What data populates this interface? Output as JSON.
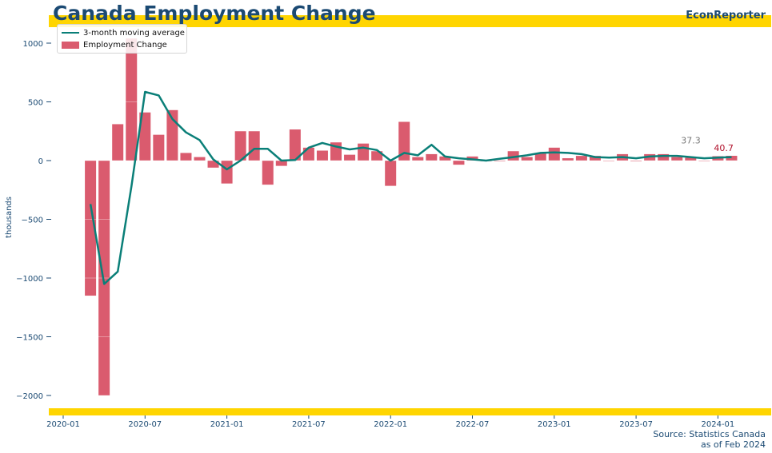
{
  "header": {
    "title": "Canada Employment Change",
    "brand": "EconReporter"
  },
  "footer": {
    "source_line1": "Source: Statistics Canada",
    "source_line2": "as of Feb 2024"
  },
  "colors": {
    "bar": "#da5b6e",
    "line": "#0a7f78",
    "band": "#ffd500",
    "axis_text": "#1b4a73",
    "last_label": "#b0102a",
    "prev_label": "#777777"
  },
  "chart_data": {
    "type": "bar",
    "title": "Canada Employment Change",
    "xlabel": "",
    "ylabel": "thousands",
    "ylim": [
      -2120,
      1120
    ],
    "yticks": [
      1000,
      500,
      0,
      -500,
      -1000,
      -1500,
      -2000
    ],
    "ytick_labels": [
      "1000",
      "500",
      "0",
      "−500",
      "−1000",
      "−1500",
      "−2000"
    ],
    "xtick_labels": [
      "2020-01",
      "2020-07",
      "2021-01",
      "2021-07",
      "2022-01",
      "2022-07",
      "2023-01",
      "2023-07",
      "2024-01"
    ],
    "xtick_month_index": [
      0,
      6,
      12,
      18,
      24,
      30,
      36,
      42,
      48
    ],
    "legend": [
      "3-month moving average",
      "Employment Change"
    ],
    "legend_position": "top-left",
    "start_month": "2020-03",
    "series": [
      {
        "name": "Employment Change",
        "type": "bar",
        "values": [
          -1150,
          -2000,
          310,
          1040,
          410,
          220,
          430,
          65,
          30,
          -60,
          -195,
          250,
          250,
          -205,
          -45,
          265,
          110,
          85,
          155,
          50,
          145,
          80,
          -215,
          330,
          30,
          55,
          35,
          -35,
          35,
          -5,
          -5,
          80,
          30,
          60,
          110,
          20,
          40,
          40,
          0,
          55,
          -5,
          55,
          55,
          30,
          25,
          0,
          37.3,
          40.7
        ]
      },
      {
        "name": "3-month moving average",
        "type": "line",
        "values": [
          -370,
          -1050,
          -945,
          -220,
          585,
          555,
          355,
          240,
          175,
          10,
          -75,
          0,
          100,
          100,
          0,
          5,
          110,
          150,
          120,
          95,
          110,
          90,
          0,
          65,
          45,
          135,
          35,
          20,
          10,
          0,
          15,
          30,
          45,
          65,
          70,
          65,
          55,
          30,
          25,
          30,
          20,
          35,
          40,
          40,
          30,
          20,
          25,
          30
        ]
      }
    ],
    "annotations": [
      {
        "text": "37.3",
        "month_index": 46,
        "value": 37.3
      },
      {
        "text": "40.7",
        "month_index": 47,
        "value": 40.7
      }
    ]
  }
}
